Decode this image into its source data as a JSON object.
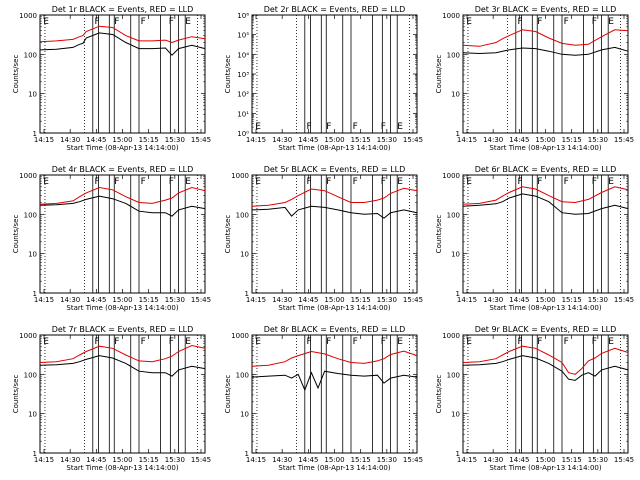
{
  "colors": {
    "events": "#000000",
    "lld": "#e00000",
    "background": "#ffffff"
  },
  "chart_data": [
    {
      "type": "line",
      "title": "Det 1r BLACK = Events, RED = LLD",
      "xlabel": "Start Time (08-Apr-13 14:14:00)",
      "ylabel": "Counts/sec",
      "y_scale": "log",
      "xlim": [
        0,
        100
      ],
      "ylim": [
        1,
        1000
      ],
      "x_tick_labels": [
        "14:15",
        "14:30",
        "14:45",
        "15:00",
        "15:15",
        "15:30",
        "15:45"
      ],
      "y_tick_labels": [
        "1",
        "10",
        "100",
        "1000"
      ],
      "flags": [
        "E",
        "F",
        "F",
        "F",
        "F",
        "E"
      ],
      "series": [
        {
          "name": "Events",
          "color": "#000000",
          "x": [
            0,
            10,
            20,
            24,
            26,
            28,
            36,
            44,
            52,
            60,
            68,
            76,
            80,
            84,
            92,
            100
          ],
          "values": [
            130,
            135,
            150,
            180,
            190,
            260,
            350,
            320,
            200,
            140,
            140,
            145,
            95,
            140,
            170,
            140
          ]
        },
        {
          "name": "LLD",
          "color": "#e00000",
          "x": [
            0,
            10,
            20,
            24,
            26,
            28,
            36,
            44,
            52,
            60,
            68,
            76,
            80,
            84,
            92,
            100
          ],
          "values": [
            210,
            220,
            240,
            280,
            300,
            380,
            520,
            480,
            300,
            220,
            220,
            230,
            200,
            230,
            280,
            250
          ]
        }
      ]
    },
    {
      "type": "line",
      "title": "Det 2r BLACK = Events, RED = LLD",
      "xlabel": "Start Time (08-Apr-13 14:14:00)",
      "ylabel": "Counts/sec",
      "y_scale": "log",
      "xlim": [
        0,
        100
      ],
      "ylim": [
        1,
        1000000
      ],
      "x_tick_labels": [
        "14:15",
        "14:30",
        "14:45",
        "15:00",
        "15:15",
        "15:30",
        "15:45"
      ],
      "y_tick_labels": [
        "10⁰",
        "10¹",
        "10²",
        "10³",
        "10⁴",
        "10⁵",
        "10⁶"
      ],
      "flags": [
        "E",
        "F",
        "F",
        "F",
        "F",
        "E"
      ],
      "series": [
        {
          "name": "Events",
          "color": "#000000",
          "x": [],
          "values": []
        },
        {
          "name": "LLD",
          "color": "#e00000",
          "x": [],
          "values": []
        }
      ]
    },
    {
      "type": "line",
      "title": "Det 3r BLACK = Events, RED = LLD",
      "xlabel": "Start Time (08-Apr-13 14:14:00)",
      "ylabel": "Counts/sec",
      "y_scale": "log",
      "xlim": [
        0,
        100
      ],
      "ylim": [
        1,
        1000
      ],
      "x_tick_labels": [
        "14:15",
        "14:30",
        "14:45",
        "15:00",
        "15:15",
        "15:30",
        "15:45"
      ],
      "y_tick_labels": [
        "1",
        "10",
        "100",
        "1000"
      ],
      "flags": [
        "E",
        "F",
        "F",
        "F",
        "F",
        "E"
      ],
      "series": [
        {
          "name": "Events",
          "color": "#000000",
          "x": [
            0,
            10,
            20,
            24,
            28,
            36,
            44,
            52,
            60,
            68,
            76,
            84,
            92,
            100
          ],
          "values": [
            110,
            105,
            110,
            120,
            130,
            145,
            140,
            120,
            100,
            95,
            100,
            130,
            150,
            120
          ]
        },
        {
          "name": "LLD",
          "color": "#e00000",
          "x": [
            0,
            10,
            20,
            24,
            28,
            36,
            44,
            52,
            60,
            68,
            76,
            84,
            92,
            100
          ],
          "values": [
            170,
            160,
            200,
            250,
            300,
            420,
            380,
            260,
            190,
            170,
            180,
            280,
            420,
            400
          ]
        }
      ]
    },
    {
      "type": "line",
      "title": "Det 4r BLACK = Events, RED = LLD",
      "xlabel": "Start Time (08-Apr-13 14:14:00)",
      "ylabel": "Counts/sec",
      "y_scale": "log",
      "xlim": [
        0,
        100
      ],
      "ylim": [
        1,
        1000
      ],
      "x_tick_labels": [
        "14:15",
        "14:30",
        "14:45",
        "15:00",
        "15:15",
        "15:30",
        "15:45"
      ],
      "y_tick_labels": [
        "1",
        "10",
        "100",
        "1000"
      ],
      "flags": [
        "E",
        "F",
        "F",
        "F",
        "F",
        "E"
      ],
      "series": [
        {
          "name": "Events",
          "color": "#000000",
          "x": [
            0,
            10,
            20,
            24,
            28,
            36,
            44,
            52,
            60,
            68,
            76,
            80,
            84,
            92,
            100
          ],
          "values": [
            170,
            175,
            190,
            210,
            240,
            290,
            250,
            190,
            120,
            110,
            110,
            90,
            130,
            160,
            140
          ]
        },
        {
          "name": "LLD",
          "color": "#e00000",
          "x": [
            0,
            10,
            20,
            24,
            28,
            36,
            44,
            52,
            60,
            68,
            76,
            80,
            84,
            92,
            100
          ],
          "values": [
            180,
            190,
            220,
            280,
            350,
            480,
            420,
            280,
            200,
            190,
            230,
            260,
            350,
            480,
            400
          ]
        }
      ]
    },
    {
      "type": "line",
      "title": "Det 5r BLACK = Events, RED = LLD",
      "xlabel": "Start Time (08-Apr-13 14:14:00)",
      "ylabel": "Counts/sec",
      "y_scale": "log",
      "xlim": [
        0,
        100
      ],
      "ylim": [
        1,
        1000
      ],
      "x_tick_labels": [
        "14:15",
        "14:30",
        "14:45",
        "15:00",
        "15:15",
        "15:30",
        "15:45"
      ],
      "y_tick_labels": [
        "1",
        "10",
        "100",
        "1000"
      ],
      "flags": [
        "E",
        "F",
        "F",
        "F",
        "F",
        "E"
      ],
      "series": [
        {
          "name": "Events",
          "color": "#000000",
          "x": [
            0,
            10,
            20,
            24,
            28,
            36,
            44,
            52,
            60,
            68,
            76,
            80,
            84,
            92,
            100
          ],
          "values": [
            130,
            135,
            150,
            90,
            130,
            160,
            150,
            130,
            110,
            100,
            105,
            80,
            110,
            130,
            110
          ]
        },
        {
          "name": "LLD",
          "color": "#e00000",
          "x": [
            0,
            10,
            20,
            24,
            28,
            36,
            44,
            52,
            60,
            68,
            76,
            80,
            84,
            92,
            100
          ],
          "values": [
            160,
            170,
            200,
            240,
            300,
            440,
            400,
            280,
            200,
            200,
            230,
            260,
            340,
            460,
            400
          ]
        }
      ]
    },
    {
      "type": "line",
      "title": "Det 6r BLACK = Events, RED = LLD",
      "xlabel": "Start Time (08-Apr-13 14:14:00)",
      "ylabel": "Counts/sec",
      "y_scale": "log",
      "xlim": [
        0,
        100
      ],
      "ylim": [
        1,
        1000
      ],
      "x_tick_labels": [
        "14:15",
        "14:30",
        "14:45",
        "15:00",
        "15:15",
        "15:30",
        "15:45"
      ],
      "y_tick_labels": [
        "1",
        "10",
        "100",
        "1000"
      ],
      "flags": [
        "E",
        "F",
        "F",
        "F",
        "F",
        "E"
      ],
      "series": [
        {
          "name": "Events",
          "color": "#000000",
          "x": [
            0,
            10,
            20,
            24,
            28,
            36,
            44,
            52,
            60,
            68,
            76,
            84,
            92,
            100
          ],
          "values": [
            160,
            170,
            185,
            210,
            260,
            330,
            290,
            210,
            110,
            100,
            105,
            140,
            170,
            140
          ]
        },
        {
          "name": "LLD",
          "color": "#e00000",
          "x": [
            0,
            10,
            20,
            24,
            28,
            36,
            44,
            52,
            60,
            68,
            76,
            84,
            92,
            100
          ],
          "values": [
            180,
            190,
            230,
            290,
            360,
            500,
            440,
            300,
            210,
            200,
            240,
            360,
            500,
            420
          ]
        }
      ]
    },
    {
      "type": "line",
      "title": "Det 7r BLACK = Events, RED = LLD",
      "xlabel": "Start Time (08-Apr-13 14:14:00)",
      "ylabel": "Counts/sec",
      "y_scale": "log",
      "xlim": [
        0,
        100
      ],
      "ylim": [
        1,
        1000
      ],
      "x_tick_labels": [
        "14:15",
        "14:30",
        "14:45",
        "15:00",
        "15:15",
        "15:30",
        "15:45"
      ],
      "y_tick_labels": [
        "1",
        "10",
        "100",
        "1000"
      ],
      "flags": [
        "E",
        "F",
        "F",
        "F",
        "F",
        "E"
      ],
      "series": [
        {
          "name": "Events",
          "color": "#000000",
          "x": [
            0,
            10,
            20,
            24,
            28,
            36,
            44,
            52,
            60,
            68,
            76,
            80,
            84,
            92,
            100
          ],
          "values": [
            170,
            175,
            190,
            210,
            240,
            300,
            260,
            190,
            120,
            110,
            110,
            90,
            130,
            160,
            140
          ]
        },
        {
          "name": "LLD",
          "color": "#e00000",
          "x": [
            0,
            10,
            20,
            24,
            28,
            36,
            44,
            52,
            60,
            68,
            76,
            80,
            84,
            92,
            100
          ],
          "values": [
            200,
            210,
            250,
            310,
            380,
            520,
            460,
            310,
            220,
            210,
            250,
            290,
            380,
            540,
            460
          ]
        }
      ]
    },
    {
      "type": "line",
      "title": "Det 8r BLACK = Events, RED = LLD",
      "xlabel": "Start Time (08-Apr-13 14:14:00)",
      "ylabel": "Counts/sec",
      "y_scale": "log",
      "xlim": [
        0,
        100
      ],
      "ylim": [
        1,
        1000
      ],
      "x_tick_labels": [
        "14:15",
        "14:30",
        "14:45",
        "15:00",
        "15:15",
        "15:30",
        "15:45"
      ],
      "y_tick_labels": [
        "1",
        "10",
        "100",
        "1000"
      ],
      "flags": [
        "E",
        "F",
        "F",
        "F",
        "F",
        "E"
      ],
      "series": [
        {
          "name": "Events",
          "color": "#000000",
          "x": [
            0,
            10,
            20,
            24,
            28,
            32,
            36,
            40,
            44,
            52,
            60,
            68,
            76,
            80,
            84,
            92,
            100
          ],
          "values": [
            85,
            90,
            95,
            80,
            100,
            40,
            110,
            45,
            120,
            105,
            95,
            90,
            95,
            60,
            80,
            95,
            85
          ]
        },
        {
          "name": "LLD",
          "color": "#e00000",
          "x": [
            0,
            10,
            20,
            24,
            28,
            36,
            44,
            52,
            60,
            68,
            76,
            80,
            84,
            92,
            100
          ],
          "values": [
            160,
            170,
            210,
            260,
            300,
            380,
            330,
            250,
            200,
            190,
            220,
            250,
            320,
            390,
            300
          ]
        }
      ]
    },
    {
      "type": "line",
      "title": "Det 9r BLACK = Events, RED = LLD",
      "xlabel": "Start Time (08-Apr-13 14:14:00)",
      "ylabel": "Counts/sec",
      "y_scale": "log",
      "xlim": [
        0,
        100
      ],
      "ylim": [
        1,
        1000
      ],
      "x_tick_labels": [
        "14:15",
        "14:30",
        "14:45",
        "15:00",
        "15:15",
        "15:30",
        "15:45"
      ],
      "y_tick_labels": [
        "1",
        "10",
        "100",
        "1000"
      ],
      "flags": [
        "E",
        "F",
        "F",
        "F",
        "F",
        "E"
      ],
      "series": [
        {
          "name": "Events",
          "color": "#000000",
          "x": [
            0,
            10,
            20,
            24,
            28,
            36,
            44,
            52,
            60,
            64,
            68,
            72,
            76,
            80,
            84,
            92,
            100
          ],
          "values": [
            170,
            175,
            190,
            210,
            240,
            300,
            260,
            190,
            120,
            75,
            70,
            95,
            110,
            90,
            130,
            160,
            130
          ]
        },
        {
          "name": "LLD",
          "color": "#e00000",
          "x": [
            0,
            10,
            20,
            24,
            28,
            36,
            44,
            52,
            60,
            64,
            68,
            72,
            76,
            80,
            84,
            92,
            100
          ],
          "values": [
            200,
            210,
            250,
            310,
            380,
            520,
            460,
            310,
            200,
            110,
            100,
            140,
            220,
            260,
            340,
            460,
            360
          ]
        }
      ]
    }
  ]
}
